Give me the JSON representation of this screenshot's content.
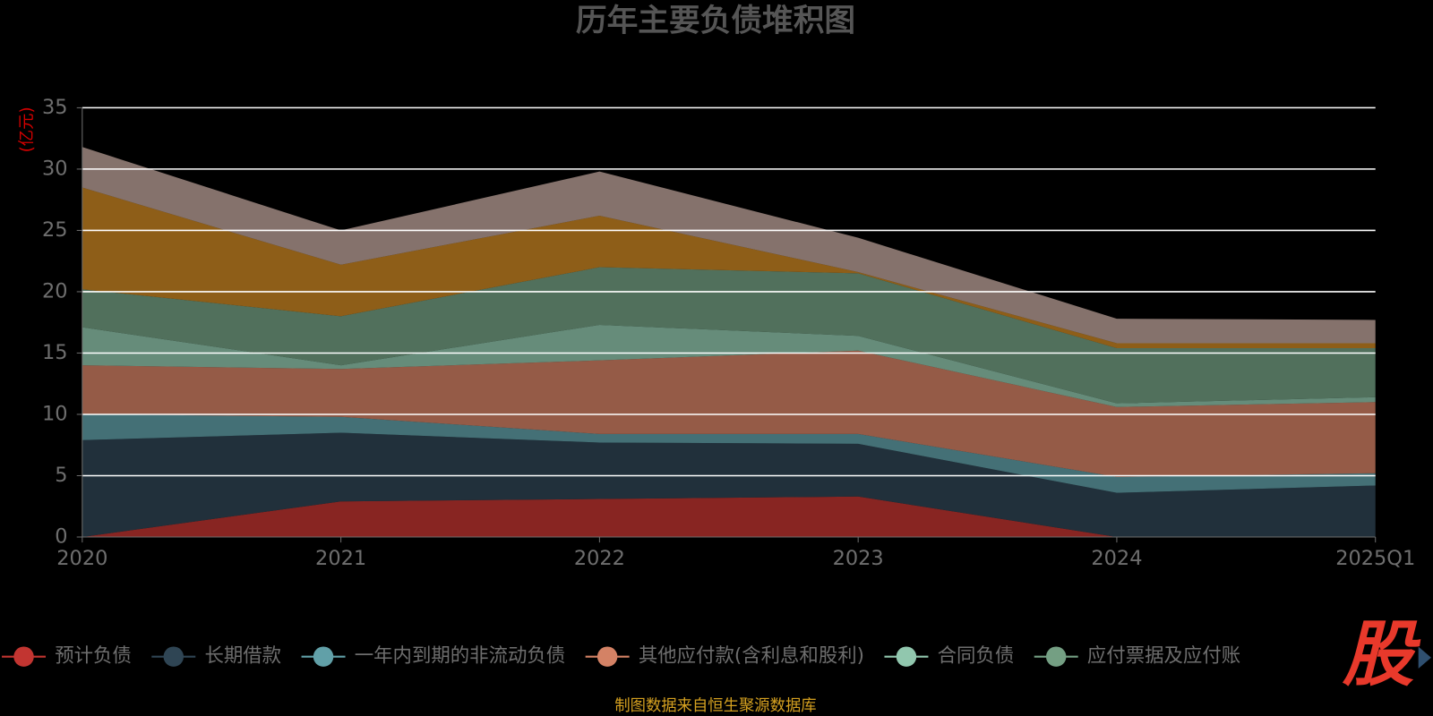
{
  "chart_data": {
    "type": "stacked-area",
    "title": "历年主要负债堆积图",
    "y_label": "(亿元)",
    "categories": [
      "2020",
      "2021",
      "2022",
      "2023",
      "2024",
      "2025Q1"
    ],
    "series": [
      {
        "name": "预计负债",
        "color": "#c23531",
        "values": [
          0,
          2.9,
          3.1,
          3.3,
          0,
          0
        ]
      },
      {
        "name": "长期借款",
        "color": "#2f4554",
        "values": [
          7.9,
          5.6,
          4.6,
          4.3,
          3.6,
          4.2
        ]
      },
      {
        "name": "一年内到期的非流动负债",
        "color": "#61a0a8",
        "values": [
          2.1,
          1.3,
          0.7,
          0.8,
          1.3,
          1.0
        ]
      },
      {
        "name": "其他应付款(含利息和股利)",
        "color": "#d48265",
        "values": [
          4.0,
          3.9,
          6.0,
          6.8,
          5.7,
          5.8
        ]
      },
      {
        "name": "合同负债",
        "color": "#91c7ae",
        "values": [
          3.1,
          0.3,
          2.9,
          1.2,
          0.3,
          0.4
        ]
      },
      {
        "name": "应付票据及应付账",
        "color": "#749f83",
        "values": [
          3.1,
          4.0,
          4.7,
          5.1,
          4.5,
          4.0
        ]
      },
      {
        "color": "#ca8622",
        "values": [
          8.3,
          4.2,
          4.2,
          0.1,
          0.4,
          0.4
        ]
      },
      {
        "color": "#bda29a",
        "values": [
          3.3,
          2.8,
          3.6,
          2.8,
          2.0,
          1.9
        ]
      }
    ],
    "ylim": [
      0,
      35
    ],
    "yticks": [
      0,
      5,
      10,
      15,
      20,
      25,
      30,
      35
    ],
    "grid": true,
    "source": "制图数据来自恒生聚源数据库",
    "logo": "股"
  }
}
